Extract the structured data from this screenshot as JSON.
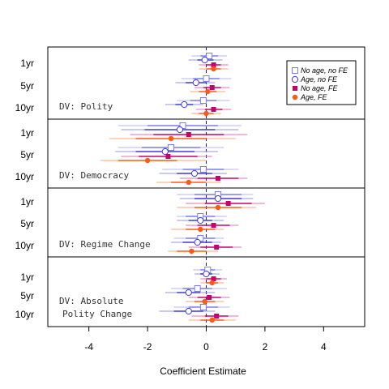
{
  "chart_data": {
    "type": "scatter",
    "xlabel": "Coefficient Estimate",
    "xlim": [
      -5.4,
      5.4
    ],
    "xticks": [
      -4,
      -2,
      0,
      2,
      4
    ],
    "xtick_labels": [
      "-4",
      "-2",
      "0",
      "2",
      "4"
    ],
    "reference_line": {
      "x": 0,
      "style": "dashed"
    },
    "legend": {
      "position": "top-right",
      "entries": [
        {
          "label": "No age, no FE",
          "marker": "open-square",
          "color": "#7b7bf5"
        },
        {
          "label": "Age, no FE",
          "marker": "open-circle",
          "color": "#3a3ae0"
        },
        {
          "label": "No age, FE",
          "marker": "filled-square",
          "color": "#c8006e"
        },
        {
          "label": "Age, FE",
          "marker": "filled-circle",
          "color": "#ff5a14"
        }
      ]
    },
    "colors": {
      "No age, no FE": "#7b7bf5",
      "Age, no FE": "#3a3ae0",
      "No age, FE": "#c8006e",
      "Age, FE": "#ff5a14"
    },
    "panels": [
      {
        "dv_lines": [
          "DV: Polity"
        ],
        "rows": [
          {
            "label": "1yr",
            "estimates": [
              {
                "model": "No age, no FE",
                "est": 0.1,
                "lo": -0.2,
                "hi": 0.4,
                "lo_wide": -0.5,
                "hi_wide": 0.7
              },
              {
                "model": "Age, no FE",
                "est": -0.05,
                "lo": -0.3,
                "hi": 0.25,
                "lo_wide": -0.6,
                "hi_wide": 0.55
              },
              {
                "model": "No age, FE",
                "est": 0.25,
                "lo": 0.0,
                "hi": 0.5,
                "lo_wide": -0.25,
                "hi_wide": 0.75
              },
              {
                "model": "Age, FE",
                "est": 0.25,
                "lo": 0.0,
                "hi": 0.5,
                "lo_wide": -0.25,
                "hi_wide": 0.75
              }
            ]
          },
          {
            "label": "5yr",
            "estimates": [
              {
                "model": "No age, no FE",
                "est": 0.0,
                "lo": -0.45,
                "hi": 0.45,
                "lo_wide": -0.85,
                "hi_wide": 0.85
              },
              {
                "model": "Age, no FE",
                "est": -0.35,
                "lo": -0.7,
                "hi": 0.0,
                "lo_wide": -1.05,
                "hi_wide": 0.3
              },
              {
                "model": "No age, FE",
                "est": 0.2,
                "lo": -0.1,
                "hi": 0.5,
                "lo_wide": -0.4,
                "hi_wide": 0.8
              },
              {
                "model": "Age, FE",
                "est": 0.05,
                "lo": -0.25,
                "hi": 0.35,
                "lo_wide": -0.55,
                "hi_wide": 0.65
              }
            ]
          },
          {
            "label": "10yr",
            "estimates": [
              {
                "model": "No age, no FE",
                "est": -0.1,
                "lo": -0.55,
                "hi": 0.35,
                "lo_wide": -1.0,
                "hi_wide": 0.8
              },
              {
                "model": "Age, no FE",
                "est": -0.75,
                "lo": -1.05,
                "hi": -0.45,
                "lo_wide": -1.4,
                "hi_wide": -0.1
              },
              {
                "model": "No age, FE",
                "est": 0.25,
                "lo": -0.05,
                "hi": 0.55,
                "lo_wide": -0.35,
                "hi_wide": 0.85
              },
              {
                "model": "Age, FE",
                "est": 0.0,
                "lo": -0.25,
                "hi": 0.25,
                "lo_wide": -0.5,
                "hi_wide": 0.5
              }
            ]
          }
        ]
      },
      {
        "dv_lines": [
          "DV: Democracy"
        ],
        "rows": [
          {
            "label": "1yr",
            "estimates": [
              {
                "model": "No age, no FE",
                "est": -0.8,
                "lo": -2.0,
                "hi": 0.4,
                "lo_wide": -3.0,
                "hi_wide": 1.2
              },
              {
                "model": "Age, no FE",
                "est": -0.9,
                "lo": -2.1,
                "hi": 0.3,
                "lo_wide": -2.9,
                "hi_wide": 1.1
              },
              {
                "model": "No age, FE",
                "est": -0.6,
                "lo": -1.8,
                "hi": 0.6,
                "lo_wide": -2.6,
                "hi_wide": 1.4
              },
              {
                "model": "Age, FE",
                "est": -1.2,
                "lo": -2.4,
                "hi": 0.0,
                "lo_wide": -3.3,
                "hi_wide": 1.0
              }
            ]
          },
          {
            "label": "5yr",
            "estimates": [
              {
                "model": "No age, no FE",
                "est": -1.2,
                "lo": -2.2,
                "hi": -0.2,
                "lo_wide": -3.0,
                "hi_wide": 0.6
              },
              {
                "model": "Age, no FE",
                "est": -1.4,
                "lo": -2.4,
                "hi": -0.4,
                "lo_wide": -3.1,
                "hi_wide": 0.4
              },
              {
                "model": "No age, FE",
                "est": -1.3,
                "lo": -2.3,
                "hi": -0.3,
                "lo_wide": -2.9,
                "hi_wide": 0.2
              },
              {
                "model": "Age, FE",
                "est": -2.0,
                "lo": -3.0,
                "hi": -1.0,
                "lo_wide": -3.6,
                "hi_wide": 0.0
              }
            ]
          },
          {
            "label": "10yr",
            "estimates": [
              {
                "model": "No age, no FE",
                "est": -0.1,
                "lo": -0.8,
                "hi": 0.6,
                "lo_wide": -1.5,
                "hi_wide": 1.1
              },
              {
                "model": "Age, no FE",
                "est": -0.4,
                "lo": -1.0,
                "hi": 0.2,
                "lo_wide": -1.6,
                "hi_wide": 0.7
              },
              {
                "model": "No age, FE",
                "est": 0.4,
                "lo": -0.3,
                "hi": 1.1,
                "lo_wide": -0.9,
                "hi_wide": 1.4
              },
              {
                "model": "Age, FE",
                "est": -0.6,
                "lo": -1.2,
                "hi": 0.0,
                "lo_wide": -1.7,
                "hi_wide": 0.5
              }
            ]
          }
        ]
      },
      {
        "dv_lines": [
          "DV: Regime Change"
        ],
        "rows": [
          {
            "label": "1yr",
            "estimates": [
              {
                "model": "No age, no FE",
                "est": 0.4,
                "lo": -0.4,
                "hi": 1.2,
                "lo_wide": -1.0,
                "hi_wide": 1.6
              },
              {
                "model": "Age, no FE",
                "est": 0.4,
                "lo": -0.4,
                "hi": 1.2,
                "lo_wide": -0.9,
                "hi_wide": 1.6
              },
              {
                "model": "No age, FE",
                "est": 0.75,
                "lo": -0.05,
                "hi": 1.55,
                "lo_wide": -0.7,
                "hi_wide": 2.0
              },
              {
                "model": "Age, FE",
                "est": 0.4,
                "lo": -0.4,
                "hi": 1.2,
                "lo_wide": -1.0,
                "hi_wide": 1.7
              }
            ]
          },
          {
            "label": "5yr",
            "estimates": [
              {
                "model": "No age, no FE",
                "est": -0.2,
                "lo": -0.7,
                "hi": 0.3,
                "lo_wide": -1.0,
                "hi_wide": 0.7
              },
              {
                "model": "Age, no FE",
                "est": -0.2,
                "lo": -0.6,
                "hi": 0.2,
                "lo_wide": -1.0,
                "hi_wide": 0.6
              },
              {
                "model": "No age, FE",
                "est": 0.25,
                "lo": -0.3,
                "hi": 0.8,
                "lo_wide": -0.7,
                "hi_wide": 1.1
              },
              {
                "model": "Age, FE",
                "est": -0.2,
                "lo": -0.7,
                "hi": 0.3,
                "lo_wide": -1.2,
                "hi_wide": 0.6
              }
            ]
          },
          {
            "label": "10yr",
            "estimates": [
              {
                "model": "No age, no FE",
                "est": -0.2,
                "lo": -0.7,
                "hi": 0.3,
                "lo_wide": -1.1,
                "hi_wide": 0.6
              },
              {
                "model": "Age, no FE",
                "est": -0.3,
                "lo": -0.8,
                "hi": 0.2,
                "lo_wide": -1.2,
                "hi_wide": 0.5
              },
              {
                "model": "No age, FE",
                "est": 0.35,
                "lo": -0.2,
                "hi": 0.9,
                "lo_wide": -0.6,
                "hi_wide": 1.2
              },
              {
                "model": "Age, FE",
                "est": -0.5,
                "lo": -1.0,
                "hi": 0.0,
                "lo_wide": -1.3,
                "hi_wide": 0.4
              }
            ]
          }
        ]
      },
      {
        "dv_lines": [
          "DV: Absolute",
          "Polity Change"
        ],
        "rows": [
          {
            "label": "1yr",
            "estimates": [
              {
                "model": "No age, no FE",
                "est": 0.05,
                "lo": -0.2,
                "hi": 0.3,
                "lo_wide": -0.45,
                "hi_wide": 0.55
              },
              {
                "model": "Age, no FE",
                "est": 0.0,
                "lo": -0.2,
                "hi": 0.2,
                "lo_wide": -0.4,
                "hi_wide": 0.45
              },
              {
                "model": "No age, FE",
                "est": 0.25,
                "lo": 0.0,
                "hi": 0.5,
                "lo_wide": -0.2,
                "hi_wide": 0.7
              },
              {
                "model": "Age, FE",
                "est": 0.2,
                "lo": 0.0,
                "hi": 0.4,
                "lo_wide": -0.2,
                "hi_wide": 0.6
              }
            ]
          },
          {
            "label": "5yr",
            "estimates": [
              {
                "model": "No age, no FE",
                "est": -0.3,
                "lo": -0.8,
                "hi": 0.2,
                "lo_wide": -1.2,
                "hi_wide": 0.7
              },
              {
                "model": "Age, no FE",
                "est": -0.6,
                "lo": -1.0,
                "hi": -0.2,
                "lo_wide": -1.4,
                "hi_wide": 0.3
              },
              {
                "model": "No age, FE",
                "est": 0.1,
                "lo": -0.3,
                "hi": 0.5,
                "lo_wide": -0.6,
                "hi_wide": 0.8
              },
              {
                "model": "Age, FE",
                "est": -0.05,
                "lo": -0.4,
                "hi": 0.3,
                "lo_wide": -0.7,
                "hi_wide": 0.6
              }
            ]
          },
          {
            "label": "10yr",
            "estimates": [
              {
                "model": "No age, no FE",
                "est": -0.1,
                "lo": -0.6,
                "hi": 0.4,
                "lo_wide": -1.1,
                "hi_wide": 0.8
              },
              {
                "model": "Age, no FE",
                "est": -0.6,
                "lo": -1.1,
                "hi": -0.1,
                "lo_wide": -1.6,
                "hi_wide": 0.3
              },
              {
                "model": "No age, FE",
                "est": 0.35,
                "lo": -0.05,
                "hi": 0.75,
                "lo_wide": -0.5,
                "hi_wide": 1.1
              },
              {
                "model": "Age, FE",
                "est": 0.2,
                "lo": -0.2,
                "hi": 0.6,
                "lo_wide": -0.6,
                "hi_wide": 1.0
              }
            ]
          }
        ]
      }
    ]
  }
}
